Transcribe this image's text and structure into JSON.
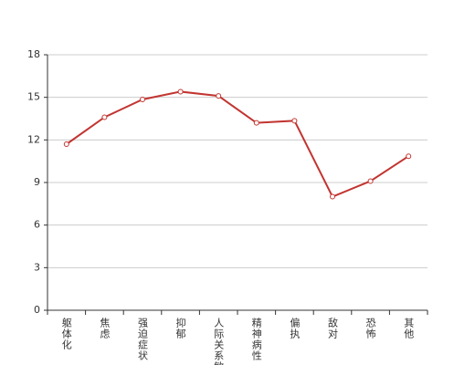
{
  "chart_data": {
    "type": "line",
    "categories": [
      "躯体化",
      "焦虑",
      "强迫症状",
      "抑郁",
      "人际关系敏",
      "精神病性",
      "偏执",
      "敌对",
      "恐怖",
      "其他"
    ],
    "series": [
      {
        "color": "#c23531",
        "values": [
          11.7,
          13.6,
          14.85,
          15.4,
          15.1,
          13.2,
          13.35,
          8.0,
          9.1,
          10.85
        ]
      }
    ],
    "ylim": [
      0,
      18
    ],
    "yticks": [
      0,
      3,
      6,
      9,
      12,
      15,
      18
    ],
    "grid": true
  }
}
